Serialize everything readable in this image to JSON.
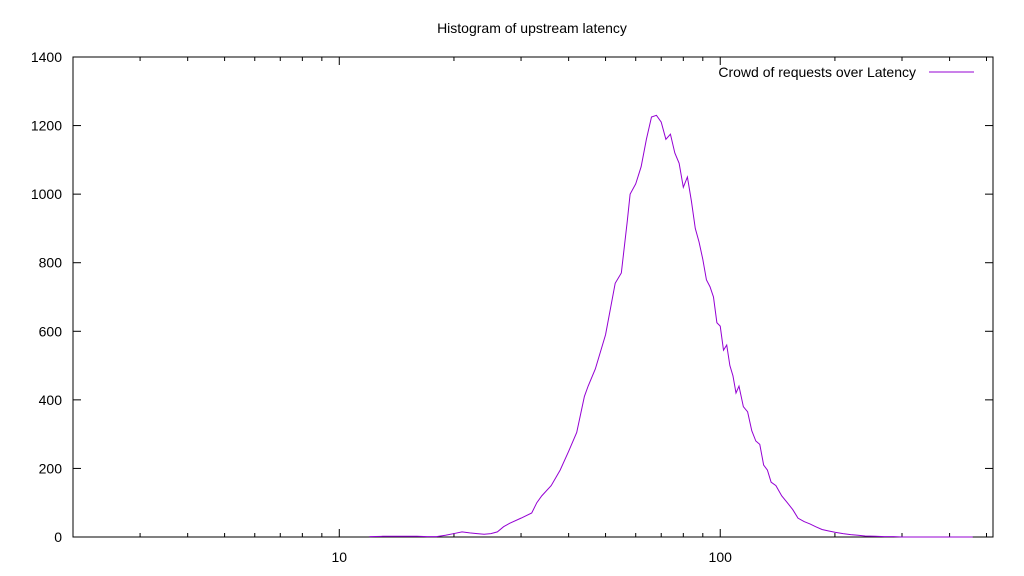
{
  "colors": {
    "series": "#9400d3",
    "axis": "#000000",
    "background": "#ffffff"
  },
  "chart_data": {
    "type": "line",
    "title": "Histogram of upstream latency",
    "xlabel": "",
    "ylabel": "",
    "xscale": "log",
    "xlim": [
      2,
      520
    ],
    "ylim": [
      0,
      1400
    ],
    "x_ticks": [
      {
        "value": 10,
        "label": "10"
      },
      {
        "value": 100,
        "label": "100"
      }
    ],
    "y_ticks": [
      0,
      200,
      400,
      600,
      800,
      1000,
      1200,
      1400
    ],
    "grid": false,
    "legend": {
      "position": "top-right"
    },
    "series": [
      {
        "name": "Crowd of requests over Latency",
        "color": "#9400d3",
        "x": [
          12,
          13,
          14,
          15,
          16,
          17,
          18,
          19,
          20,
          21,
          22,
          23,
          24,
          25,
          26,
          27,
          28,
          30,
          32,
          33,
          34,
          36,
          38,
          40,
          42,
          44,
          45,
          47,
          50,
          53,
          55,
          57,
          58,
          60,
          62,
          64,
          66,
          68,
          70,
          72,
          74,
          76,
          78,
          80,
          82,
          84,
          86,
          88,
          90,
          92,
          94,
          96,
          98,
          100,
          102,
          104,
          106,
          108,
          110,
          112,
          115,
          118,
          121,
          124,
          127,
          130,
          133,
          136,
          140,
          145,
          150,
          155,
          160,
          166,
          172,
          178,
          185,
          192,
          200,
          210,
          220,
          230,
          240,
          255,
          270,
          285,
          300,
          320,
          340,
          360,
          380,
          400,
          430,
          460
        ],
        "y": [
          1,
          2,
          2,
          2,
          2,
          1,
          1,
          5,
          10,
          15,
          12,
          10,
          8,
          10,
          15,
          30,
          40,
          55,
          70,
          100,
          120,
          150,
          195,
          250,
          305,
          410,
          440,
          490,
          590,
          740,
          770,
          920,
          1000,
          1030,
          1080,
          1160,
          1225,
          1230,
          1210,
          1160,
          1175,
          1120,
          1090,
          1020,
          1050,
          980,
          900,
          860,
          810,
          750,
          730,
          700,
          625,
          615,
          545,
          560,
          500,
          470,
          420,
          440,
          380,
          365,
          310,
          280,
          270,
          210,
          195,
          160,
          150,
          120,
          100,
          80,
          55,
          45,
          38,
          30,
          22,
          18,
          14,
          10,
          7,
          5,
          3,
          2,
          1,
          1,
          0,
          0,
          0,
          0,
          0,
          0,
          0,
          0
        ]
      }
    ]
  }
}
